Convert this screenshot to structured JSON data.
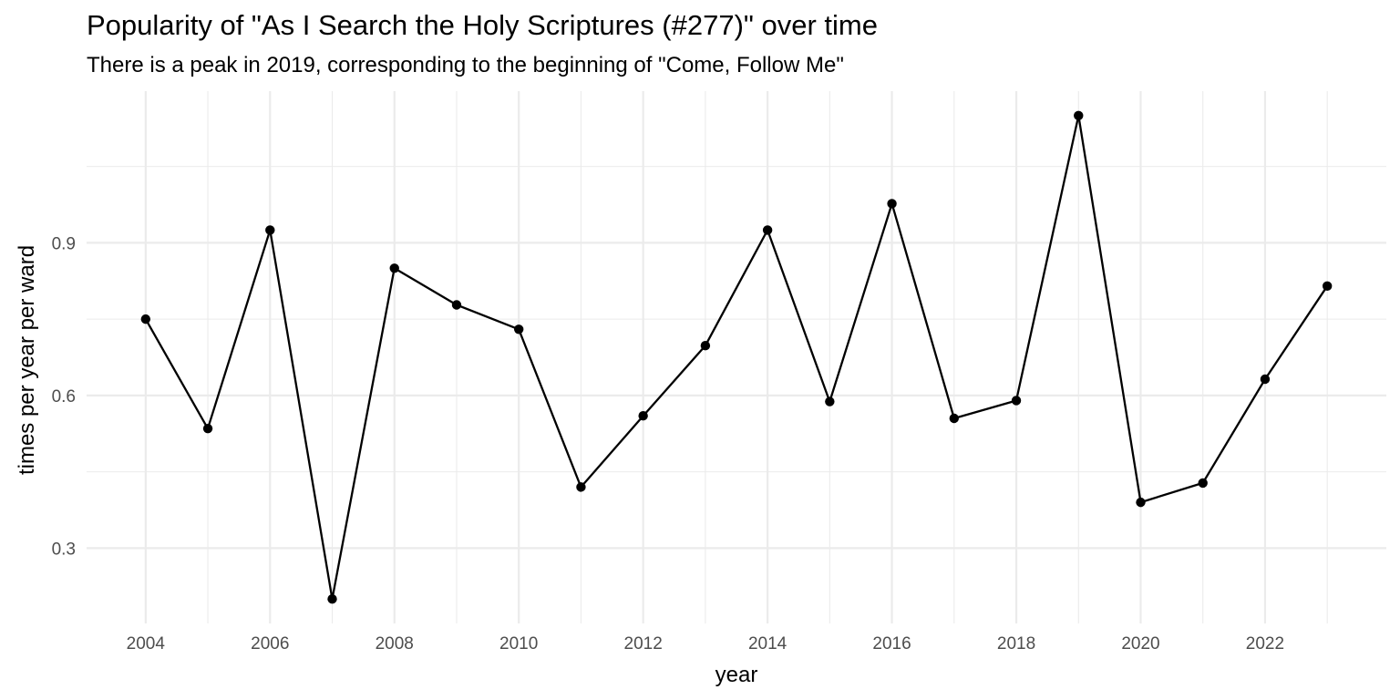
{
  "chart_data": {
    "type": "line",
    "title": "Popularity of \"As I Search the Holy Scriptures (#277)\" over time",
    "subtitle": "There is a peak in 2019, corresponding to the beginning of \"Come, Follow Me\"",
    "xlabel": "year",
    "ylabel": "times per year per ward",
    "x": [
      2004,
      2005,
      2006,
      2007,
      2008,
      2009,
      2010,
      2011,
      2012,
      2013,
      2014,
      2015,
      2016,
      2017,
      2018,
      2019,
      2020,
      2021,
      2022,
      2023
    ],
    "y": [
      0.75,
      0.535,
      0.925,
      0.2,
      0.85,
      0.778,
      0.73,
      0.42,
      0.56,
      0.698,
      0.925,
      0.588,
      0.977,
      0.555,
      0.59,
      1.15,
      0.39,
      0.428,
      0.632,
      0.815
    ],
    "x_ticks": [
      2004,
      2006,
      2008,
      2010,
      2012,
      2014,
      2016,
      2018,
      2020,
      2022
    ],
    "y_ticks": [
      0.3,
      0.6,
      0.9
    ],
    "xlim": [
      2003.05,
      2023.95
    ],
    "ylim": [
      0.152,
      1.198
    ],
    "line_color": "#000000",
    "grid": true,
    "legend": "none"
  }
}
